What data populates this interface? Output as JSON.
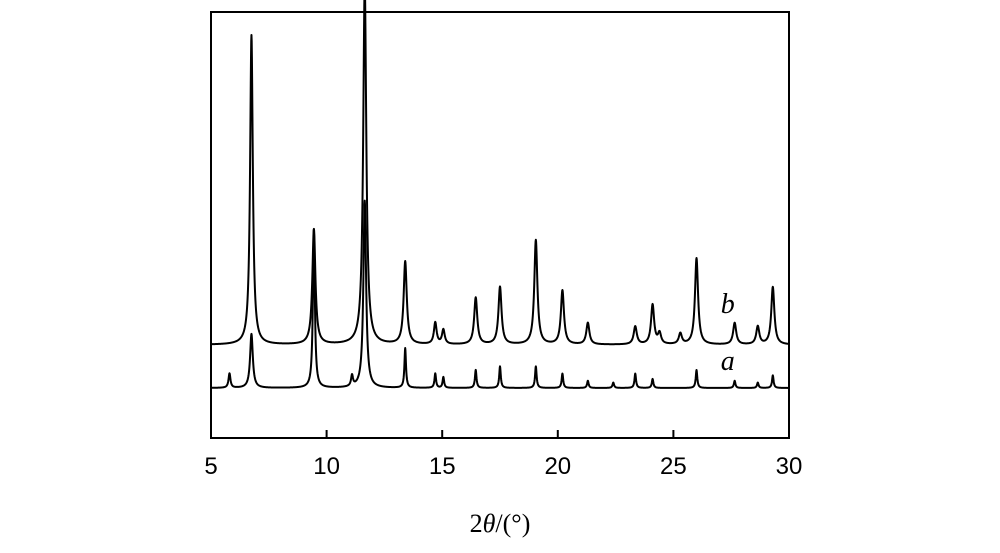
{
  "chart_data": {
    "type": "line",
    "xlabel_parts": [
      "2",
      "θ",
      "/(°)"
    ],
    "xlim": [
      5,
      30
    ],
    "xticks": [
      5,
      10,
      15,
      20,
      25,
      30
    ],
    "ylim": [
      0,
      1.0
    ],
    "yticks": [],
    "grid": false,
    "series": [
      {
        "name": "a",
        "baseline": 0.0,
        "peaks": [
          {
            "x": 5.8,
            "h": 0.04,
            "w": 0.05
          },
          {
            "x": 6.75,
            "h": 0.15,
            "w": 0.07
          },
          {
            "x": 9.45,
            "h": 0.44,
            "w": 0.05
          },
          {
            "x": 11.1,
            "h": 0.03,
            "w": 0.05
          },
          {
            "x": 11.65,
            "h": 0.52,
            "w": 0.07
          },
          {
            "x": 13.4,
            "h": 0.11,
            "w": 0.04
          },
          {
            "x": 14.7,
            "h": 0.04,
            "w": 0.04
          },
          {
            "x": 15.05,
            "h": 0.03,
            "w": 0.04
          },
          {
            "x": 16.45,
            "h": 0.05,
            "w": 0.04
          },
          {
            "x": 17.5,
            "h": 0.06,
            "w": 0.04
          },
          {
            "x": 19.05,
            "h": 0.06,
            "w": 0.04
          },
          {
            "x": 20.2,
            "h": 0.04,
            "w": 0.04
          },
          {
            "x": 21.3,
            "h": 0.02,
            "w": 0.04
          },
          {
            "x": 22.4,
            "h": 0.015,
            "w": 0.04
          },
          {
            "x": 23.35,
            "h": 0.04,
            "w": 0.04
          },
          {
            "x": 24.1,
            "h": 0.025,
            "w": 0.04
          },
          {
            "x": 26.0,
            "h": 0.05,
            "w": 0.04
          },
          {
            "x": 27.65,
            "h": 0.02,
            "w": 0.04
          },
          {
            "x": 28.65,
            "h": 0.015,
            "w": 0.04
          },
          {
            "x": 29.3,
            "h": 0.035,
            "w": 0.04
          }
        ]
      },
      {
        "name": "b",
        "baseline": 0.12,
        "peaks": [
          {
            "x": 6.75,
            "h": 0.86,
            "w": 0.07
          },
          {
            "x": 9.45,
            "h": 0.32,
            "w": 0.08
          },
          {
            "x": 11.65,
            "h": 1.0,
            "w": 0.08
          },
          {
            "x": 13.4,
            "h": 0.23,
            "w": 0.08
          },
          {
            "x": 14.7,
            "h": 0.06,
            "w": 0.07
          },
          {
            "x": 15.05,
            "h": 0.04,
            "w": 0.07
          },
          {
            "x": 16.45,
            "h": 0.13,
            "w": 0.08
          },
          {
            "x": 17.5,
            "h": 0.16,
            "w": 0.08
          },
          {
            "x": 19.05,
            "h": 0.29,
            "w": 0.08
          },
          {
            "x": 20.2,
            "h": 0.15,
            "w": 0.08
          },
          {
            "x": 21.3,
            "h": 0.06,
            "w": 0.08
          },
          {
            "x": 23.35,
            "h": 0.05,
            "w": 0.08
          },
          {
            "x": 24.1,
            "h": 0.11,
            "w": 0.08
          },
          {
            "x": 24.4,
            "h": 0.03,
            "w": 0.08
          },
          {
            "x": 25.3,
            "h": 0.03,
            "w": 0.08
          },
          {
            "x": 26.0,
            "h": 0.24,
            "w": 0.08
          },
          {
            "x": 27.65,
            "h": 0.06,
            "w": 0.08
          },
          {
            "x": 28.65,
            "h": 0.05,
            "w": 0.08
          },
          {
            "x": 29.3,
            "h": 0.16,
            "w": 0.08
          }
        ]
      }
    ]
  }
}
